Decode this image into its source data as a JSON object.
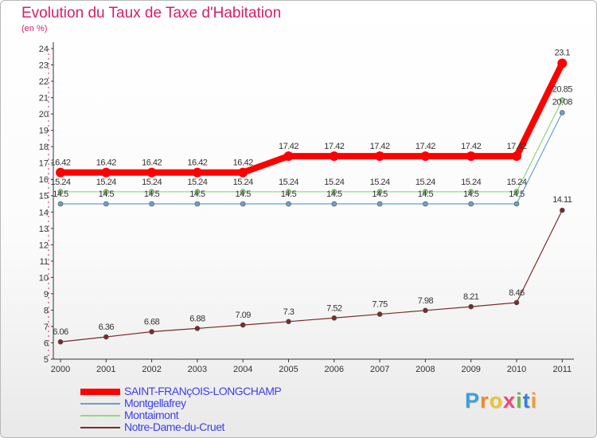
{
  "title": "Evolution du Taux de Taxe d'Habitation",
  "unit_label": "(en %)",
  "brand": "Proxiti",
  "colors": {
    "title": "#d4206a",
    "legend_text": "#3b3ff0",
    "axis": "#333333",
    "grid": "#d0d0d0"
  },
  "chart_data": {
    "type": "line",
    "title": "Evolution du Taux de Taxe d'Habitation",
    "ylabel": "(en %)",
    "xlabel": "",
    "categories": [
      "2000",
      "2001",
      "2002",
      "2003",
      "2004",
      "2005",
      "2006",
      "2007",
      "2008",
      "2009",
      "2010",
      "2011"
    ],
    "ylim": [
      5,
      24
    ],
    "yticks": [
      5,
      6,
      7,
      8,
      9,
      10,
      11,
      12,
      13,
      14,
      15,
      16,
      17,
      18,
      19,
      20,
      21,
      22,
      23,
      24
    ],
    "grid": "none",
    "legend": "bottom-left",
    "series": [
      {
        "name": "SAINT-FRANçOIS-LONGCHAMP",
        "color": "#ff0000",
        "width": "thick",
        "values": [
          16.42,
          16.42,
          16.42,
          16.42,
          16.42,
          17.42,
          17.42,
          17.42,
          17.42,
          17.42,
          17.42,
          23.1
        ],
        "labels": [
          "16.42",
          "16.42",
          "16.42",
          "16.42",
          "16.42",
          "17.42",
          "17.42",
          "17.42",
          "17.42",
          "17.42",
          "17.42",
          "23.1"
        ]
      },
      {
        "name": "Montgellafrey",
        "color": "#6e9ecb",
        "width": "thin",
        "values": [
          14.5,
          14.5,
          14.5,
          14.5,
          14.5,
          14.5,
          14.5,
          14.5,
          14.5,
          14.5,
          14.5,
          20.08
        ],
        "labels": [
          "14.5",
          "14.5",
          "14.5",
          "14.5",
          "14.5",
          "14.5",
          "14.5",
          "14.5",
          "14.5",
          "14.5",
          "14.5",
          "20.08"
        ]
      },
      {
        "name": "Montaimont",
        "color": "#8fd87a",
        "width": "thin",
        "values": [
          15.24,
          15.24,
          15.24,
          15.24,
          15.24,
          15.24,
          15.24,
          15.24,
          15.24,
          15.24,
          15.24,
          20.85
        ],
        "labels": [
          "15.24",
          "15.24",
          "15.24",
          "15.24",
          "15.24",
          "15.24",
          "15.24",
          "15.24",
          "15.24",
          "15.24",
          "15.24",
          "20.85"
        ]
      },
      {
        "name": "Notre-Dame-du-Cruet",
        "color": "#7a2a2a",
        "width": "thin",
        "values": [
          6.06,
          6.36,
          6.68,
          6.88,
          7.09,
          7.3,
          7.52,
          7.75,
          7.98,
          8.21,
          8.46,
          14.11
        ],
        "labels": [
          "6.06",
          "6.36",
          "6.68",
          "6.88",
          "7.09",
          "7.3",
          "7.52",
          "7.75",
          "7.98",
          "8.21",
          "8.46",
          "14.11"
        ]
      }
    ]
  }
}
